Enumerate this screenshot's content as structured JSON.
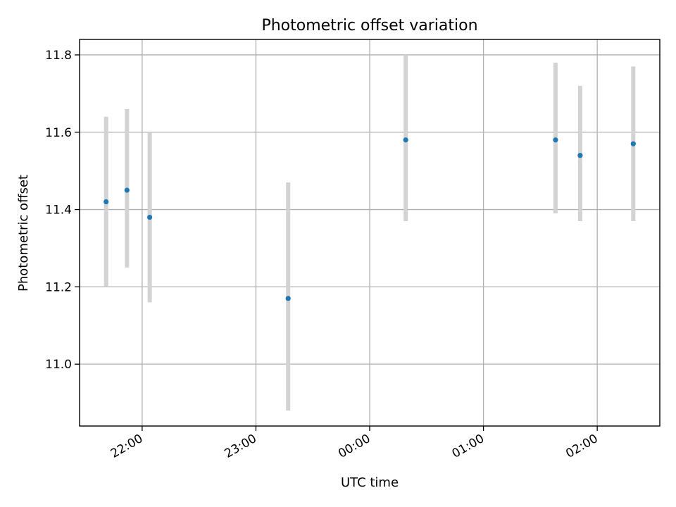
{
  "chart_data": {
    "type": "scatter",
    "title": "Photometric offset variation",
    "xlabel": "UTC time",
    "ylabel": "Photometric offset",
    "x_scale": "time",
    "x_ticks": [
      "22:00",
      "23:00",
      "00:00",
      "01:00",
      "02:00"
    ],
    "y_ticks": [
      "11.0",
      "11.2",
      "11.4",
      "11.6",
      "11.8"
    ],
    "xlim": [
      "21:27",
      "02:33"
    ],
    "ylim": [
      10.84,
      11.84
    ],
    "grid": true,
    "marker_color": "#1f77b4",
    "errorbar_color": "#d3d3d3",
    "series": [
      {
        "points": [
          {
            "x": "21:41",
            "y": 11.42,
            "yerr_low": 11.2,
            "yerr_high": 11.64
          },
          {
            "x": "21:52",
            "y": 11.45,
            "yerr_low": 11.25,
            "yerr_high": 11.66
          },
          {
            "x": "22:04",
            "y": 11.38,
            "yerr_low": 11.16,
            "yerr_high": 11.6
          },
          {
            "x": "23:17",
            "y": 11.17,
            "yerr_low": 10.88,
            "yerr_high": 11.47
          },
          {
            "x": "00:19",
            "y": 11.58,
            "yerr_low": 11.37,
            "yerr_high": 11.8
          },
          {
            "x": "01:38",
            "y": 11.58,
            "yerr_low": 11.39,
            "yerr_high": 11.78
          },
          {
            "x": "01:51",
            "y": 11.54,
            "yerr_low": 11.37,
            "yerr_high": 11.72
          },
          {
            "x": "02:19",
            "y": 11.57,
            "yerr_low": 11.37,
            "yerr_high": 11.77
          }
        ]
      }
    ]
  }
}
